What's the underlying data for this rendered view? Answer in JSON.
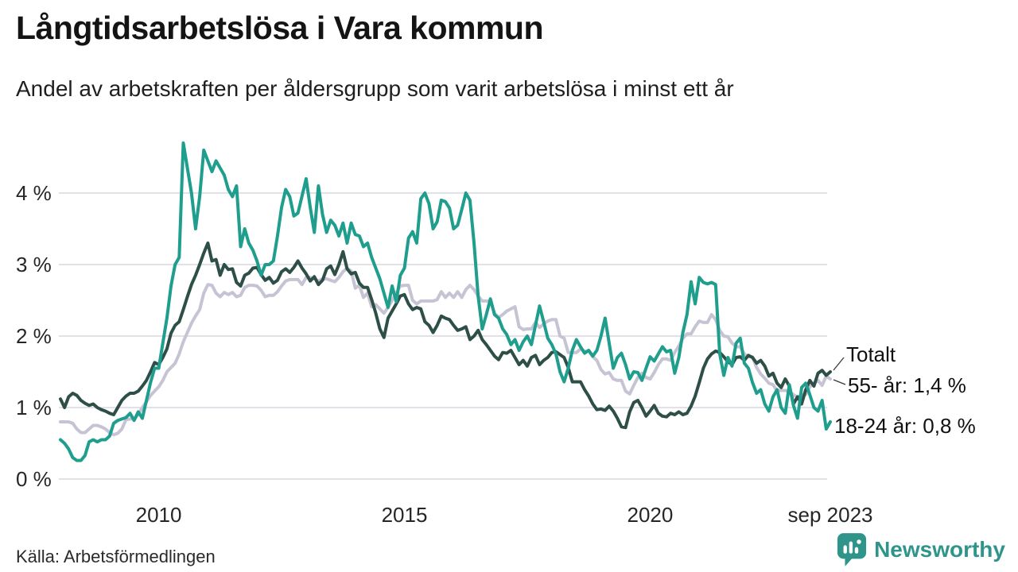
{
  "header": {
    "title": "Långtidsarbetslösa i Vara kommun",
    "subtitle": "Andel av arbetskraften per åldersgrupp som varit arbetslösa i minst ett år"
  },
  "footer": {
    "source": "Källa: Arbetsförmedlingen",
    "brand": "Newsworthy",
    "brand_icon": "bar-chart-speech-bubble-icon",
    "brand_color": "#2f958b"
  },
  "colors": {
    "teal_series": "#1f9e8e",
    "dark_series": "#2d4f47",
    "gray_series": "#c6c4d4",
    "gridline": "#e2e1e8",
    "leader_line": "#3a3a3a"
  },
  "chart_data": {
    "type": "line",
    "unit": "%",
    "x_start": "2008-01",
    "x_end": "2023-09",
    "x_interval": "monthly",
    "grid": "horizontal",
    "ylim": [
      0,
      4.9
    ],
    "y_ticks": [
      "0 %",
      "1 %",
      "2 %",
      "3 %",
      "4 %"
    ],
    "x_ticks": [
      {
        "label": "2010",
        "month_index": 24
      },
      {
        "label": "2015",
        "month_index": 84
      },
      {
        "label": "2020",
        "month_index": 144
      },
      {
        "label": "sep 2023",
        "month_index": 188
      }
    ],
    "series": [
      {
        "name": "55- år",
        "color": "#c6c4d4",
        "values": [
          0.8,
          0.8,
          0.8,
          0.78,
          0.7,
          0.65,
          0.65,
          0.7,
          0.75,
          0.75,
          0.73,
          0.7,
          0.65,
          0.62,
          0.64,
          0.7,
          0.83,
          0.84,
          0.84,
          0.9,
          1.0,
          1.08,
          1.17,
          1.23,
          1.29,
          1.38,
          1.5,
          1.56,
          1.62,
          1.75,
          1.92,
          2.05,
          2.18,
          2.28,
          2.37,
          2.6,
          2.72,
          2.71,
          2.6,
          2.55,
          2.61,
          2.58,
          2.61,
          2.55,
          2.57,
          2.68,
          2.71,
          2.71,
          2.7,
          2.64,
          2.55,
          2.57,
          2.57,
          2.62,
          2.7,
          2.77,
          2.79,
          2.79,
          2.79,
          2.72,
          2.82,
          2.82,
          2.8,
          2.77,
          2.8,
          2.8,
          2.78,
          2.76,
          2.82,
          2.9,
          2.95,
          2.91,
          2.67,
          2.71,
          2.54,
          2.6,
          2.41,
          2.44,
          2.38,
          2.32,
          2.4,
          2.5,
          2.6,
          2.7,
          2.71,
          2.71,
          2.5,
          2.45,
          2.49,
          2.49,
          2.49,
          2.49,
          2.51,
          2.62,
          2.54,
          2.6,
          2.54,
          2.62,
          2.54,
          2.65,
          2.71,
          2.65,
          2.56,
          2.49,
          2.49,
          2.49,
          2.32,
          2.26,
          2.3,
          2.35,
          2.38,
          2.41,
          2.13,
          2.09,
          2.1,
          2.1,
          2.19,
          2.12,
          2.17,
          2.21,
          2.23,
          2.23,
          2.0,
          1.97,
          1.77,
          1.77,
          1.77,
          1.82,
          1.79,
          1.79,
          1.71,
          1.66,
          1.53,
          1.47,
          1.49,
          1.4,
          1.38,
          1.38,
          1.23,
          1.19,
          1.31,
          1.42,
          1.48,
          1.42,
          1.4,
          1.49,
          1.6,
          1.68,
          1.68,
          1.66,
          1.77,
          1.86,
          1.97,
          2.03,
          2.03,
          2.13,
          2.21,
          2.19,
          2.19,
          2.3,
          2.23,
          2.08,
          2.0,
          1.99,
          1.9,
          1.85,
          1.85,
          1.75,
          1.71,
          1.71,
          1.56,
          1.47,
          1.41,
          1.34,
          1.32,
          1.23,
          1.24,
          1.24,
          1.22,
          1.18,
          1.14,
          1.18,
          1.18,
          1.29,
          1.34,
          1.38,
          1.31,
          1.44,
          1.4
        ]
      },
      {
        "name": "Totalt",
        "color": "#2d4f47",
        "values": [
          1.12,
          1.0,
          1.15,
          1.2,
          1.17,
          1.1,
          1.06,
          1.03,
          1.05,
          1.0,
          0.97,
          0.95,
          0.92,
          0.9,
          1.0,
          1.1,
          1.16,
          1.2,
          1.2,
          1.23,
          1.3,
          1.38,
          1.5,
          1.63,
          1.6,
          1.7,
          1.82,
          2.04,
          2.15,
          2.2,
          2.37,
          2.55,
          2.72,
          2.85,
          3.0,
          3.16,
          3.3,
          3.05,
          3.07,
          2.85,
          3.0,
          2.93,
          2.94,
          2.75,
          2.7,
          2.85,
          2.88,
          2.95,
          2.96,
          2.86,
          2.78,
          2.82,
          2.74,
          2.78,
          2.9,
          2.94,
          2.89,
          2.96,
          3.05,
          2.95,
          2.87,
          2.77,
          2.83,
          2.72,
          2.78,
          2.94,
          2.98,
          2.86,
          3.0,
          3.18,
          2.94,
          2.87,
          2.89,
          2.74,
          2.68,
          2.68,
          2.51,
          2.32,
          2.1,
          1.98,
          2.25,
          2.35,
          2.45,
          2.56,
          2.58,
          2.45,
          2.37,
          2.4,
          2.38,
          2.2,
          2.15,
          2.05,
          2.15,
          2.28,
          2.25,
          2.23,
          2.15,
          2.08,
          2.1,
          2.13,
          1.95,
          2.0,
          2.08,
          1.95,
          1.88,
          1.8,
          1.72,
          1.67,
          1.77,
          1.76,
          1.8,
          1.7,
          1.6,
          1.66,
          1.58,
          1.7,
          1.73,
          1.6,
          1.66,
          1.7,
          1.77,
          1.78,
          1.74,
          1.7,
          1.56,
          1.36,
          1.36,
          1.36,
          1.25,
          1.16,
          1.05,
          0.97,
          0.98,
          0.96,
          1.02,
          0.95,
          0.85,
          0.73,
          0.72,
          0.94,
          1.07,
          1.1,
          1.0,
          0.88,
          0.95,
          1.03,
          0.92,
          0.88,
          0.87,
          0.92,
          0.9,
          0.94,
          0.9,
          0.92,
          1.02,
          1.16,
          1.35,
          1.55,
          1.68,
          1.75,
          1.79,
          1.77,
          1.71,
          1.64,
          1.6,
          1.7,
          1.71,
          1.66,
          1.73,
          1.7,
          1.62,
          1.66,
          1.58,
          1.44,
          1.48,
          1.34,
          1.28,
          1.4,
          1.3,
          1.05,
          1.15,
          1.05,
          1.25,
          1.38,
          1.3,
          1.48,
          1.52,
          1.45,
          1.5
        ]
      },
      {
        "name": "18-24 år",
        "color": "#1f9e8e",
        "values": [
          0.55,
          0.5,
          0.42,
          0.3,
          0.26,
          0.26,
          0.33,
          0.52,
          0.55,
          0.52,
          0.55,
          0.55,
          0.6,
          0.78,
          0.82,
          0.84,
          0.86,
          0.92,
          0.82,
          0.94,
          0.85,
          1.1,
          1.35,
          1.55,
          1.55,
          1.9,
          2.25,
          2.7,
          3.0,
          3.1,
          4.7,
          4.35,
          4.0,
          3.5,
          3.95,
          4.6,
          4.45,
          4.3,
          4.45,
          4.35,
          4.25,
          4.05,
          3.95,
          4.1,
          3.25,
          3.5,
          3.3,
          3.2,
          3.05,
          2.85,
          3.0,
          3.0,
          3.05,
          3.4,
          3.8,
          4.05,
          3.95,
          3.68,
          3.72,
          3.96,
          4.2,
          3.8,
          3.45,
          4.1,
          3.7,
          3.45,
          3.62,
          3.55,
          3.4,
          3.58,
          3.3,
          3.58,
          3.42,
          3.4,
          3.25,
          3.3,
          3.1,
          2.95,
          2.8,
          2.6,
          2.4,
          2.7,
          2.48,
          2.85,
          2.95,
          3.37,
          3.46,
          3.3,
          3.92,
          4.0,
          3.85,
          3.5,
          3.6,
          3.9,
          3.88,
          3.79,
          3.5,
          3.55,
          3.77,
          4.0,
          3.9,
          3.3,
          2.56,
          2.1,
          2.3,
          2.52,
          2.3,
          2.25,
          2.1,
          2.02,
          1.88,
          1.95,
          1.8,
          1.92,
          2.0,
          1.88,
          2.15,
          2.42,
          2.2,
          1.97,
          1.88,
          1.75,
          1.5,
          1.36,
          1.55,
          1.8,
          1.95,
          1.85,
          1.76,
          1.8,
          1.72,
          1.8,
          2.0,
          2.25,
          1.9,
          1.55,
          1.7,
          1.76,
          1.6,
          1.4,
          1.5,
          1.49,
          1.38,
          1.55,
          1.71,
          1.65,
          1.75,
          1.85,
          1.78,
          1.8,
          1.48,
          1.7,
          2.05,
          2.3,
          2.76,
          2.45,
          2.82,
          2.75,
          2.73,
          2.75,
          2.72,
          1.75,
          1.45,
          1.7,
          1.58,
          1.9,
          1.97,
          1.62,
          1.55,
          1.35,
          1.2,
          1.25,
          1.05,
          0.95,
          1.15,
          1.25,
          1.0,
          0.92,
          1.32,
          1.03,
          0.85,
          1.28,
          1.34,
          1.18,
          1.0,
          0.95,
          1.1,
          0.7,
          0.8
        ]
      }
    ],
    "annotations": [
      {
        "label": "Totalt",
        "series": "Totalt",
        "value": null
      },
      {
        "label": "55- år: 1,4 %",
        "series": "55- år",
        "value": 1.4
      },
      {
        "label": "18-24 år: 0,8 %",
        "series": "18-24 år",
        "value": 0.8
      }
    ],
    "legend_position": "right-of-line-ends"
  }
}
